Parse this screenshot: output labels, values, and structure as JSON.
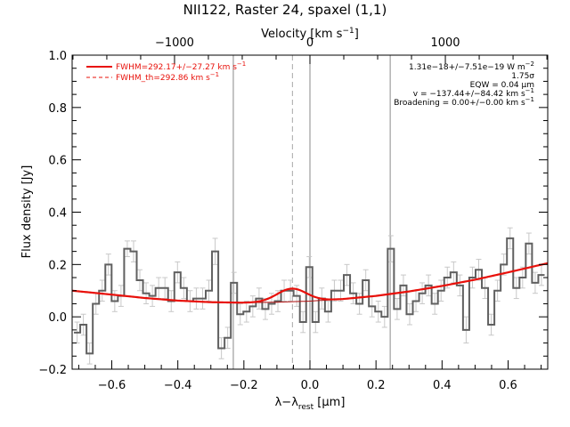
{
  "chart_data": {
    "type": "line",
    "title": "NII122, Raster 24, spaxel (1,1)",
    "xlabel": "λ−λ",
    "xlabel_sub": "rest",
    "xlabel_unit_open": " [",
    "xlabel_unit": "μm",
    "xlabel_unit_close": "]",
    "ylabel": "Flux density [Jy]",
    "top_xlabel": "Velocity [km s",
    "top_xlabel_sup": "−1",
    "top_xlabel_close": "]",
    "xlim": [
      -0.72,
      0.72
    ],
    "ylim": [
      -0.2,
      1.0
    ],
    "x_ticks": [
      -0.6,
      -0.4,
      -0.2,
      0.0,
      0.2,
      0.4,
      0.6
    ],
    "x_tick_labels": [
      "−0.6",
      "−0.4",
      "−0.2",
      "0.0",
      "0.2",
      "0.4",
      "0.6"
    ],
    "y_ticks": [
      -0.2,
      0.0,
      0.2,
      0.4,
      0.6,
      0.8,
      1.0
    ],
    "y_tick_labels": [
      "−0.2",
      "0.0",
      "0.2",
      "0.4",
      "0.6",
      "0.8",
      "1.0"
    ],
    "top_ticks": [
      -1000,
      0,
      1000
    ],
    "top_tick_labels": [
      "−1000",
      "0",
      "1000"
    ],
    "top_ticks_x": [
      -0.41,
      0.0,
      0.41
    ],
    "vertical_lines": [
      -0.232,
      -0.053,
      0.0,
      0.243
    ],
    "dashed_line_x": -0.053,
    "spectrum": {
      "name": "spectrum",
      "color": "#606060",
      "error_color": "#c8c8c8",
      "x": [
        -0.705,
        -0.686,
        -0.667,
        -0.648,
        -0.629,
        -0.61,
        -0.591,
        -0.572,
        -0.553,
        -0.534,
        -0.515,
        -0.496,
        -0.477,
        -0.458,
        -0.439,
        -0.42,
        -0.401,
        -0.382,
        -0.363,
        -0.344,
        -0.325,
        -0.306,
        -0.287,
        -0.268,
        -0.249,
        -0.23,
        -0.211,
        -0.192,
        -0.173,
        -0.154,
        -0.135,
        -0.116,
        -0.097,
        -0.078,
        -0.059,
        -0.04,
        -0.021,
        -0.002,
        0.017,
        0.036,
        0.055,
        0.074,
        0.093,
        0.112,
        0.131,
        0.15,
        0.169,
        0.188,
        0.207,
        0.226,
        0.245,
        0.264,
        0.283,
        0.302,
        0.321,
        0.34,
        0.359,
        0.378,
        0.397,
        0.416,
        0.435,
        0.454,
        0.473,
        0.492,
        0.511,
        0.53,
        0.549,
        0.568,
        0.587,
        0.606,
        0.625,
        0.644,
        0.663,
        0.682,
        0.701
      ],
      "y": [
        -0.06,
        -0.03,
        -0.14,
        0.05,
        0.1,
        0.2,
        0.06,
        0.08,
        0.26,
        0.25,
        0.14,
        0.09,
        0.08,
        0.11,
        0.11,
        0.06,
        0.17,
        0.11,
        0.06,
        0.07,
        0.07,
        0.1,
        0.25,
        -0.12,
        -0.08,
        0.13,
        0.01,
        0.02,
        0.04,
        0.07,
        0.03,
        0.05,
        0.06,
        0.1,
        0.1,
        0.08,
        -0.02,
        0.19,
        -0.02,
        0.07,
        0.02,
        0.1,
        0.1,
        0.16,
        0.09,
        0.05,
        0.14,
        0.04,
        0.02,
        0.0,
        0.26,
        0.03,
        0.12,
        0.01,
        0.06,
        0.09,
        0.12,
        0.05,
        0.1,
        0.15,
        0.17,
        0.12,
        -0.05,
        0.15,
        0.18,
        0.11,
        -0.03,
        0.1,
        0.2,
        0.3,
        0.11,
        0.15,
        0.28,
        0.13,
        0.16
      ],
      "err": [
        0.04,
        0.04,
        0.04,
        0.04,
        0.04,
        0.04,
        0.04,
        0.04,
        0.03,
        0.04,
        0.04,
        0.04,
        0.04,
        0.04,
        0.04,
        0.04,
        0.04,
        0.04,
        0.04,
        0.04,
        0.04,
        0.04,
        0.05,
        0.04,
        0.04,
        0.04,
        0.04,
        0.04,
        0.04,
        0.04,
        0.04,
        0.04,
        0.04,
        0.04,
        0.04,
        0.04,
        0.04,
        0.04,
        0.04,
        0.04,
        0.04,
        0.04,
        0.04,
        0.04,
        0.04,
        0.04,
        0.04,
        0.04,
        0.04,
        0.04,
        0.05,
        0.04,
        0.04,
        0.04,
        0.04,
        0.04,
        0.04,
        0.04,
        0.04,
        0.04,
        0.04,
        0.04,
        0.05,
        0.04,
        0.04,
        0.04,
        0.04,
        0.04,
        0.04,
        0.04,
        0.04,
        0.04,
        0.04,
        0.04,
        0.04
      ]
    },
    "fit": {
      "color": "#e8100a",
      "continuum_x": [
        -0.72,
        -0.6,
        -0.5,
        -0.4,
        -0.3,
        -0.2,
        -0.1,
        0.0,
        0.1,
        0.2,
        0.3,
        0.4,
        0.5,
        0.6,
        0.72
      ],
      "continuum_y": [
        0.1,
        0.085,
        0.072,
        0.062,
        0.056,
        0.054,
        0.056,
        0.06,
        0.068,
        0.08,
        0.097,
        0.118,
        0.142,
        0.17,
        0.205
      ],
      "line_center": -0.055,
      "line_amplitude": 0.05,
      "line_sigma": 0.045,
      "th_line_amplitude": 0.0
    },
    "legend": [
      {
        "label": "FWHM=292.17+/−27.27 km s",
        "sup": "−1",
        "style": "solid",
        "color": "#e8100a"
      },
      {
        "label": "FWHM_th=292.86 km s",
        "sup": "−1",
        "style": "dashed",
        "color": "#e8100a"
      }
    ],
    "legend_position": "top-left",
    "annotations": [
      {
        "text": "1.31e−18+/−7.51e−19 W m",
        "sup": "−2"
      },
      {
        "text": "1.75σ",
        "sup": ""
      },
      {
        "text": "EQW = 0.04 μm",
        "sup": ""
      },
      {
        "text": "v = −137.44+/−84.42 km s",
        "sup": "−1"
      },
      {
        "text": "Broadening = 0.00+/−0.00 km s",
        "sup": "−1"
      }
    ],
    "annotation_position": "top-right",
    "grid": false
  }
}
